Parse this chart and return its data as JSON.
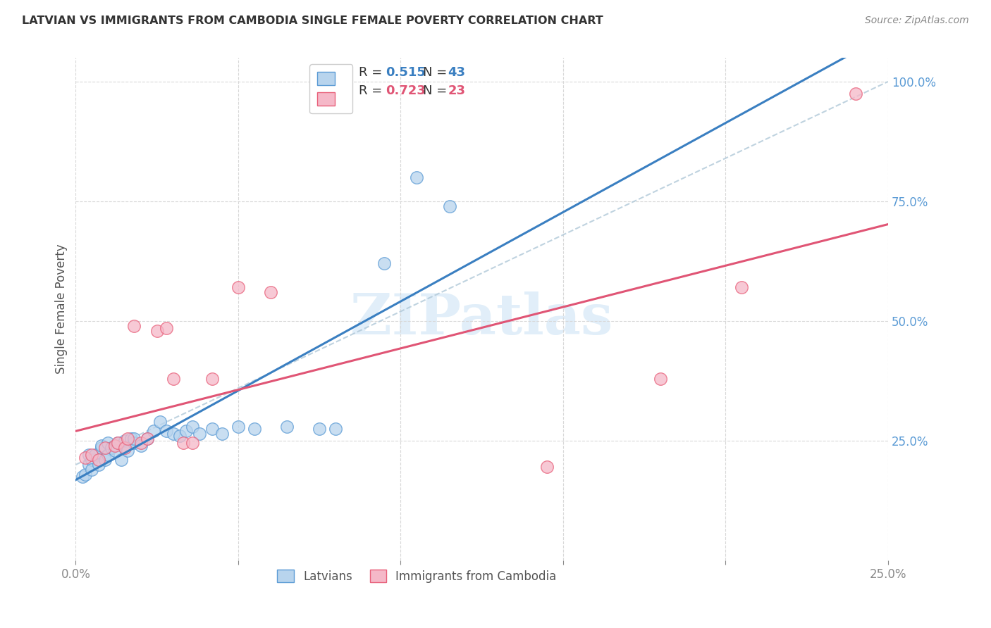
{
  "title": "LATVIAN VS IMMIGRANTS FROM CAMBODIA SINGLE FEMALE POVERTY CORRELATION CHART",
  "source": "Source: ZipAtlas.com",
  "ylabel_label": "Single Female Poverty",
  "xlim": [
    0.0,
    0.25
  ],
  "ylim": [
    0.0,
    1.05
  ],
  "xticks": [
    0.0,
    0.05,
    0.1,
    0.15,
    0.2,
    0.25
  ],
  "xtick_labels": [
    "0.0%",
    "",
    "",
    "",
    "",
    "25.0%"
  ],
  "yticks": [
    0.25,
    0.5,
    0.75,
    1.0
  ],
  "latvian_R": 0.515,
  "latvian_N": 43,
  "cambodia_R": 0.723,
  "cambodia_N": 23,
  "latvian_fill_color": "#b8d4ed",
  "cambodia_fill_color": "#f5b8c8",
  "latvian_edge_color": "#5b9bd5",
  "cambodia_edge_color": "#e8607a",
  "regression_latvian_color": "#3a7fc1",
  "regression_cambodia_color": "#e05575",
  "regression_dashed_color": "#b0c8d8",
  "latvian_points_x": [
    0.002,
    0.003,
    0.004,
    0.004,
    0.005,
    0.005,
    0.006,
    0.007,
    0.008,
    0.008,
    0.009,
    0.01,
    0.01,
    0.011,
    0.012,
    0.013,
    0.014,
    0.015,
    0.015,
    0.016,
    0.017,
    0.018,
    0.018,
    0.02,
    0.022,
    0.024,
    0.026,
    0.028,
    0.03,
    0.032,
    0.034,
    0.036,
    0.038,
    0.042,
    0.045,
    0.05,
    0.055,
    0.065,
    0.075,
    0.08,
    0.095,
    0.105,
    0.115
  ],
  "latvian_points_y": [
    0.175,
    0.18,
    0.2,
    0.22,
    0.21,
    0.19,
    0.22,
    0.2,
    0.235,
    0.24,
    0.21,
    0.22,
    0.245,
    0.235,
    0.23,
    0.245,
    0.21,
    0.235,
    0.25,
    0.23,
    0.255,
    0.245,
    0.255,
    0.24,
    0.255,
    0.27,
    0.29,
    0.27,
    0.265,
    0.26,
    0.27,
    0.28,
    0.265,
    0.275,
    0.265,
    0.28,
    0.275,
    0.28,
    0.275,
    0.275,
    0.62,
    0.8,
    0.74
  ],
  "cambodia_points_x": [
    0.003,
    0.005,
    0.007,
    0.009,
    0.012,
    0.013,
    0.015,
    0.016,
    0.018,
    0.02,
    0.022,
    0.025,
    0.028,
    0.03,
    0.033,
    0.036,
    0.042,
    0.05,
    0.06,
    0.145,
    0.18,
    0.205,
    0.24
  ],
  "cambodia_points_y": [
    0.215,
    0.22,
    0.21,
    0.235,
    0.24,
    0.245,
    0.235,
    0.255,
    0.49,
    0.245,
    0.255,
    0.48,
    0.485,
    0.38,
    0.245,
    0.245,
    0.38,
    0.57,
    0.56,
    0.195,
    0.38,
    0.57,
    0.975
  ],
  "watermark_text": "ZIPatlas",
  "watermark_color": "#cde4f5",
  "background_color": "#ffffff",
  "grid_color": "#d8d8d8",
  "title_color": "#333333",
  "source_color": "#888888",
  "ylabel_color": "#555555",
  "tick_color": "#888888",
  "ytick_right_color": "#5b9bd5",
  "legend_R_color": "#3a7fc1",
  "legend_N_color": "#e05575"
}
